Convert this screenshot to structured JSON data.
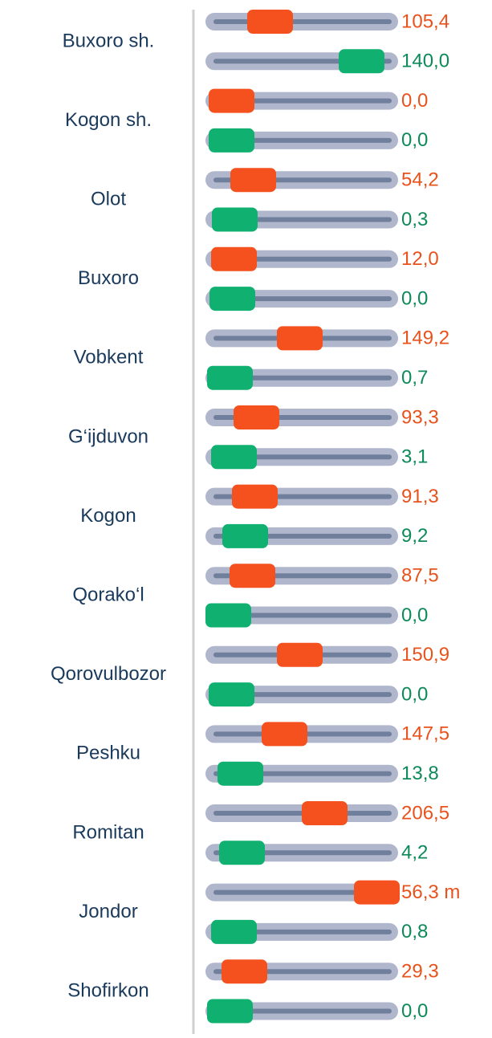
{
  "rows": [
    {
      "name": "Buxoro sh.",
      "values": [
        "105,4",
        "140,0"
      ]
    },
    {
      "name": "Kogon sh.",
      "values": [
        "0,0",
        "0,0"
      ]
    },
    {
      "name": "Olot",
      "values": [
        "54,2",
        "0,3"
      ]
    },
    {
      "name": "Buxoro",
      "values": [
        "12,0",
        "0,0"
      ]
    },
    {
      "name": "Vobkent",
      "values": [
        "149,2",
        "0,7"
      ]
    },
    {
      "name": "G‘ijduvon",
      "values": [
        "93,3",
        "3,1"
      ]
    },
    {
      "name": "Kogon",
      "values": [
        "91,3",
        "9,2"
      ]
    },
    {
      "name": "Qorako‘l",
      "values": [
        "87,5",
        "0,0"
      ]
    },
    {
      "name": "Qorovulbozor",
      "values": [
        "150,9",
        "0,0"
      ]
    },
    {
      "name": "Peshku",
      "values": [
        "147,5",
        "13,8"
      ]
    },
    {
      "name": "Romitan",
      "values": [
        "206,5",
        "4,2"
      ]
    },
    {
      "name": "Jondor",
      "values": [
        "56,3 m",
        "0,8"
      ]
    },
    {
      "name": "Shofirkon",
      "values": [
        "29,3",
        "0,0"
      ]
    }
  ]
}
